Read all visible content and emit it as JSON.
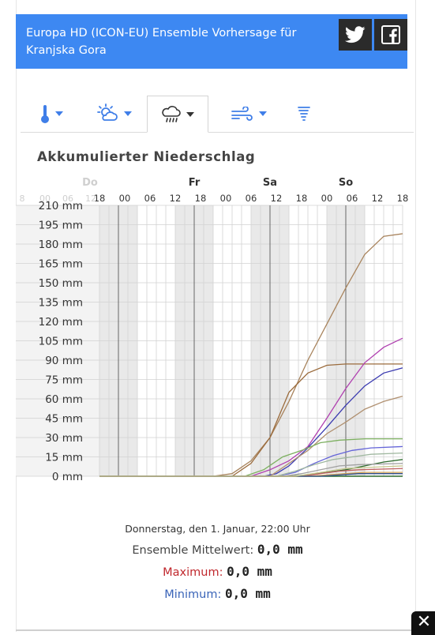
{
  "header": {
    "title": "Europa HD (ICON-EU) Ensemble Vorhersage für Kranjska Gora",
    "twitter_icon": "twitter-icon",
    "facebook_icon": "facebook-icon"
  },
  "tabs": [
    {
      "icon": "thermometer-icon",
      "has_dropdown": true,
      "active": false
    },
    {
      "icon": "sun-cloud-icon",
      "has_dropdown": true,
      "active": false
    },
    {
      "icon": "rain-cloud-icon",
      "has_dropdown": true,
      "active": true
    },
    {
      "icon": "wind-icon",
      "has_dropdown": true,
      "active": false
    },
    {
      "icon": "tornado-icon",
      "has_dropdown": false,
      "active": false
    }
  ],
  "chart_data": {
    "type": "line",
    "title": "Akkumulierter Niederschlag",
    "day_labels": [
      {
        "label": "Do",
        "x": 0
      },
      {
        "label": "Fr",
        "x": 30
      },
      {
        "label": "Sa",
        "x": 54
      },
      {
        "label": "So",
        "x": 78
      }
    ],
    "hour_ticks": [
      "18",
      "00",
      "06",
      "12",
      "18",
      "00",
      "06",
      "12",
      "18",
      "00",
      "06",
      "12",
      "18"
    ],
    "y_tick_labels": [
      "0 mm",
      "15 mm",
      "30 mm",
      "45 mm",
      "60 mm",
      "75 mm",
      "90 mm",
      "105 mm",
      "120 mm",
      "135 mm",
      "150 mm",
      "165 mm",
      "180 mm",
      "195 mm",
      "210 mm"
    ],
    "ylim": [
      0,
      210
    ],
    "xlim": [
      0,
      96
    ],
    "x_unit": "hours since Thursday 18:00",
    "night_bands": [
      [
        0,
        12
      ],
      [
        24,
        36
      ],
      [
        48,
        60
      ],
      [
        72,
        84
      ]
    ],
    "midnight_lines": [
      6,
      30,
      54,
      78
    ],
    "series": [
      {
        "color": "#a8835c",
        "points": [
          [
            0,
            0
          ],
          [
            36,
            0
          ],
          [
            42,
            2
          ],
          [
            48,
            12
          ],
          [
            54,
            30
          ],
          [
            60,
            58
          ],
          [
            66,
            90
          ],
          [
            72,
            118
          ],
          [
            78,
            146
          ],
          [
            84,
            172
          ],
          [
            90,
            186
          ],
          [
            96,
            188
          ]
        ]
      },
      {
        "color": "#9b6b3c",
        "points": [
          [
            0,
            0
          ],
          [
            42,
            0
          ],
          [
            48,
            10
          ],
          [
            54,
            30
          ],
          [
            60,
            65
          ],
          [
            66,
            80
          ],
          [
            72,
            86
          ],
          [
            78,
            87
          ],
          [
            84,
            87
          ],
          [
            96,
            87
          ]
        ]
      },
      {
        "color": "#b040b0",
        "points": [
          [
            0,
            0
          ],
          [
            48,
            0
          ],
          [
            54,
            5
          ],
          [
            60,
            12
          ],
          [
            66,
            23
          ],
          [
            72,
            45
          ],
          [
            78,
            68
          ],
          [
            84,
            88
          ],
          [
            90,
            100
          ],
          [
            96,
            107
          ]
        ]
      },
      {
        "color": "#3a3ab0",
        "points": [
          [
            0,
            0
          ],
          [
            52,
            0
          ],
          [
            56,
            2
          ],
          [
            60,
            8
          ],
          [
            66,
            22
          ],
          [
            72,
            38
          ],
          [
            78,
            55
          ],
          [
            84,
            70
          ],
          [
            90,
            80
          ],
          [
            96,
            84
          ]
        ]
      },
      {
        "color": "#b09070",
        "points": [
          [
            0,
            0
          ],
          [
            54,
            0
          ],
          [
            60,
            10
          ],
          [
            66,
            20
          ],
          [
            72,
            33
          ],
          [
            78,
            42
          ],
          [
            84,
            52
          ],
          [
            90,
            58
          ],
          [
            96,
            62
          ]
        ]
      },
      {
        "color": "#7db060",
        "points": [
          [
            0,
            0
          ],
          [
            46,
            0
          ],
          [
            52,
            5
          ],
          [
            58,
            15
          ],
          [
            64,
            20
          ],
          [
            70,
            26
          ],
          [
            76,
            28
          ],
          [
            84,
            29
          ],
          [
            96,
            29
          ]
        ]
      },
      {
        "color": "#6464d8",
        "points": [
          [
            0,
            0
          ],
          [
            56,
            0
          ],
          [
            62,
            3
          ],
          [
            68,
            10
          ],
          [
            74,
            16
          ],
          [
            80,
            20
          ],
          [
            86,
            22
          ],
          [
            96,
            23
          ]
        ]
      },
      {
        "color": "#a0b8a0",
        "points": [
          [
            0,
            0
          ],
          [
            56,
            0
          ],
          [
            62,
            4
          ],
          [
            68,
            9
          ],
          [
            74,
            13
          ],
          [
            80,
            15
          ],
          [
            86,
            17
          ],
          [
            96,
            18
          ]
        ]
      },
      {
        "color": "#2e6b2e",
        "points": [
          [
            0,
            0
          ],
          [
            60,
            0
          ],
          [
            66,
            1
          ],
          [
            72,
            3
          ],
          [
            78,
            5
          ],
          [
            84,
            8
          ],
          [
            90,
            11
          ],
          [
            96,
            13
          ]
        ]
      },
      {
        "color": "#a0a0a0",
        "points": [
          [
            0,
            0
          ],
          [
            58,
            0
          ],
          [
            64,
            2
          ],
          [
            70,
            5
          ],
          [
            76,
            8
          ],
          [
            82,
            9
          ],
          [
            96,
            10
          ]
        ]
      },
      {
        "color": "#c06060",
        "points": [
          [
            0,
            0
          ],
          [
            64,
            0
          ],
          [
            70,
            2
          ],
          [
            76,
            4
          ],
          [
            82,
            5
          ],
          [
            96,
            6
          ]
        ]
      },
      {
        "color": "#d0a050",
        "points": [
          [
            0,
            0
          ],
          [
            66,
            0
          ],
          [
            72,
            1
          ],
          [
            78,
            2
          ],
          [
            84,
            3
          ],
          [
            96,
            3
          ]
        ]
      },
      {
        "color": "#305090",
        "points": [
          [
            0,
            0
          ],
          [
            70,
            0
          ],
          [
            76,
            1
          ],
          [
            82,
            2
          ],
          [
            96,
            2
          ]
        ]
      },
      {
        "color": "#c8c890",
        "points": [
          [
            0,
            0
          ],
          [
            62,
            0
          ],
          [
            70,
            3
          ],
          [
            78,
            6
          ],
          [
            86,
            7
          ],
          [
            96,
            8
          ]
        ]
      }
    ]
  },
  "info": {
    "date": "Donnerstag, den 1. Januar, 22:00 Uhr",
    "mean_label": "Ensemble Mittelwert:",
    "mean_value": "0,0 mm",
    "max_label": "Maximum:",
    "max_value": "0,0 mm",
    "min_label": "Minimum:",
    "min_value": "0,0 mm",
    "max_color": "#c0282d",
    "min_color": "#3a64b8"
  },
  "close_icon": "close-icon"
}
